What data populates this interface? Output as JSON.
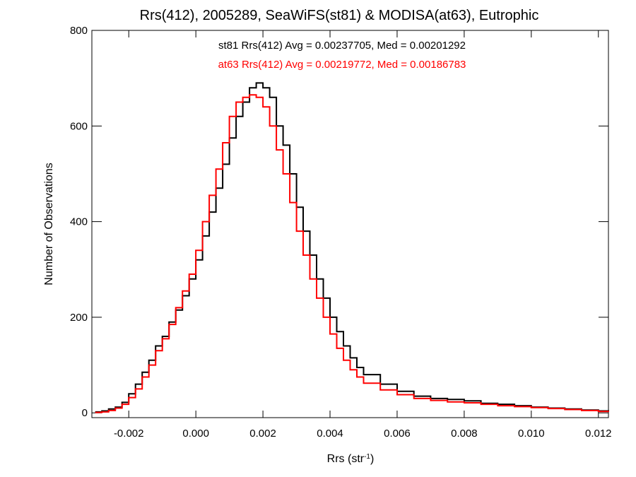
{
  "chart_data": {
    "type": "histogram",
    "title": "Rrs(412), 2005289, SeaWiFS(st81) & MODISA(at63), Eutrophic",
    "xlabel": "Rrs (str",
    "xlabel_sup": "-1",
    "xlabel_suffix": ")",
    "ylabel": "Number of Observations",
    "xlim": [
      -0.0031,
      0.0123
    ],
    "ylim": [
      -10,
      800
    ],
    "x_ticks": [
      -0.002,
      0.0,
      0.002,
      0.004,
      0.006,
      0.008,
      0.01,
      0.012
    ],
    "x_tick_labels": [
      "-0.002",
      "0.000",
      "0.002",
      "0.004",
      "0.006",
      "0.008",
      "0.010",
      "0.012"
    ],
    "y_ticks": [
      0,
      200,
      400,
      600,
      800
    ],
    "y_tick_labels": [
      "0",
      "200",
      "400",
      "600",
      "800"
    ],
    "grid": false,
    "series": [
      {
        "name": "st81",
        "color": "#000000",
        "annotation": "st81 Rrs(412) Avg = 0.00237705, Med = 0.00201292",
        "x": [
          -0.003,
          -0.0028,
          -0.0026,
          -0.0024,
          -0.0022,
          -0.002,
          -0.0018,
          -0.0016,
          -0.0014,
          -0.0012,
          -0.001,
          -0.0008,
          -0.0006,
          -0.0004,
          -0.0002,
          0.0,
          0.0002,
          0.0004,
          0.0006,
          0.0008,
          0.001,
          0.0012,
          0.0014,
          0.0016,
          0.0018,
          0.002,
          0.0022,
          0.0024,
          0.0026,
          0.0028,
          0.003,
          0.0032,
          0.0034,
          0.0036,
          0.0038,
          0.004,
          0.0042,
          0.0044,
          0.0046,
          0.0048,
          0.005,
          0.0055,
          0.006,
          0.0065,
          0.007,
          0.0075,
          0.008,
          0.0085,
          0.009,
          0.0095,
          0.01,
          0.0105,
          0.011,
          0.0115,
          0.012,
          0.0123
        ],
        "y": [
          2,
          4,
          8,
          12,
          22,
          40,
          60,
          85,
          110,
          140,
          160,
          190,
          215,
          245,
          280,
          320,
          370,
          420,
          470,
          520,
          575,
          620,
          650,
          680,
          690,
          680,
          660,
          600,
          560,
          500,
          430,
          380,
          330,
          280,
          240,
          200,
          170,
          140,
          115,
          95,
          80,
          60,
          45,
          35,
          30,
          28,
          25,
          20,
          18,
          15,
          12,
          10,
          8,
          6,
          4,
          3
        ]
      },
      {
        "name": "at63",
        "color": "#ff0000",
        "annotation": "at63 Rrs(412) Avg = 0.00219772, Med = 0.00186783",
        "x": [
          -0.003,
          -0.0028,
          -0.0026,
          -0.0024,
          -0.0022,
          -0.002,
          -0.0018,
          -0.0016,
          -0.0014,
          -0.0012,
          -0.001,
          -0.0008,
          -0.0006,
          -0.0004,
          -0.0002,
          0.0,
          0.0002,
          0.0004,
          0.0006,
          0.0008,
          0.001,
          0.0012,
          0.0014,
          0.0016,
          0.0018,
          0.002,
          0.0022,
          0.0024,
          0.0026,
          0.0028,
          0.003,
          0.0032,
          0.0034,
          0.0036,
          0.0038,
          0.004,
          0.0042,
          0.0044,
          0.0046,
          0.0048,
          0.005,
          0.0055,
          0.006,
          0.0065,
          0.007,
          0.0075,
          0.008,
          0.0085,
          0.009,
          0.0095,
          0.01,
          0.0105,
          0.011,
          0.0115,
          0.012,
          0.0123
        ],
        "y": [
          1,
          2,
          5,
          10,
          18,
          32,
          50,
          75,
          100,
          130,
          155,
          185,
          220,
          255,
          290,
          340,
          400,
          455,
          510,
          565,
          620,
          650,
          660,
          665,
          660,
          640,
          600,
          550,
          500,
          440,
          380,
          330,
          280,
          240,
          200,
          165,
          135,
          110,
          90,
          75,
          62,
          48,
          38,
          30,
          26,
          23,
          21,
          18,
          15,
          13,
          11,
          9,
          7,
          5,
          3,
          2
        ]
      }
    ]
  }
}
